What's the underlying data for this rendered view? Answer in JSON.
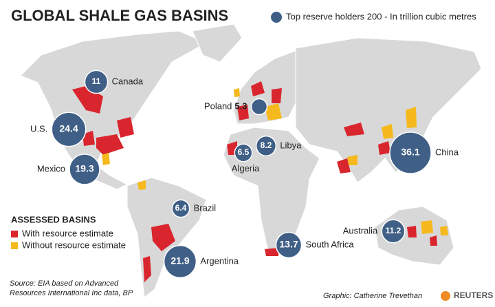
{
  "title": "GLOBAL SHALE GAS BASINS",
  "bubble_legend": "Top reserve holders 200 - In trillion cubic metres",
  "bubble_color": "#3f5f86",
  "bubbles": [
    {
      "name": "Canada",
      "value": 11
    },
    {
      "name": "U.S.",
      "value": 24.4
    },
    {
      "name": "Mexico",
      "value": 19.3
    },
    {
      "name": "Brazil",
      "value": 6.4
    },
    {
      "name": "Argentina",
      "value": 21.9
    },
    {
      "name": "Algeria",
      "value": 6.5
    },
    {
      "name": "Libya",
      "value": 8.2
    },
    {
      "name": "Poland",
      "value": 5.3
    },
    {
      "name": "China",
      "value": 36.1
    },
    {
      "name": "South Africa",
      "value": 13.7
    },
    {
      "name": "Australia",
      "value": 11.2
    }
  ],
  "assessed": {
    "title": "ASSESSED BASINS",
    "items": [
      {
        "label": "With resource estimate",
        "color": "#d9262e"
      },
      {
        "label": "Without resource estimate",
        "color": "#f6b91d"
      }
    ]
  },
  "source": [
    "Source: EIA based on Advanced",
    "Resources International Inc data, BP"
  ],
  "credit": "Graphic: Catherine Trevethan",
  "brand": "REUTERS"
}
